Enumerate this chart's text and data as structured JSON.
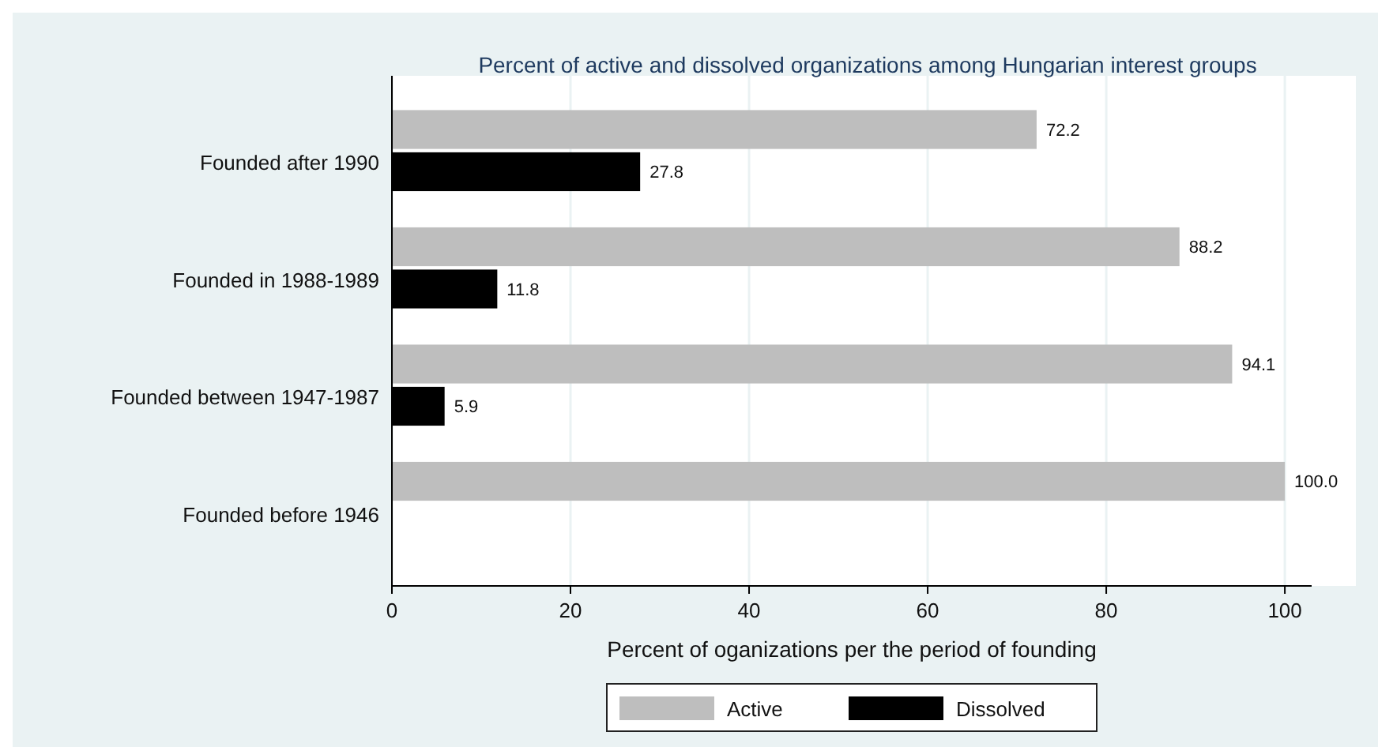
{
  "chart_data": {
    "type": "bar",
    "orientation": "horizontal",
    "title": "Percent of active and dissolved organizations among Hungarian interest groups",
    "xlabel": "Percent of oganizations per the period of founding",
    "categories": [
      "Founded after 1990",
      "Founded in 1988-1989",
      "Founded between 1947-1987",
      "Founded before 1946"
    ],
    "series": [
      {
        "name": "Active",
        "color": "#bebebe",
        "values": [
          72.2,
          88.2,
          94.1,
          100
        ],
        "value_labels": [
          "72.2",
          "88.2",
          "94.1",
          "100.0"
        ]
      },
      {
        "name": "Dissolved",
        "color": "#000000",
        "values": [
          27.8,
          11.8,
          5.9,
          null
        ],
        "value_labels": [
          "27.8",
          "11.8",
          "5.9",
          null
        ]
      }
    ],
    "xlim": [
      0,
      103
    ],
    "xticks": [
      0,
      20,
      40,
      60,
      80,
      100
    ],
    "grid": "x",
    "legend": "bottom"
  }
}
